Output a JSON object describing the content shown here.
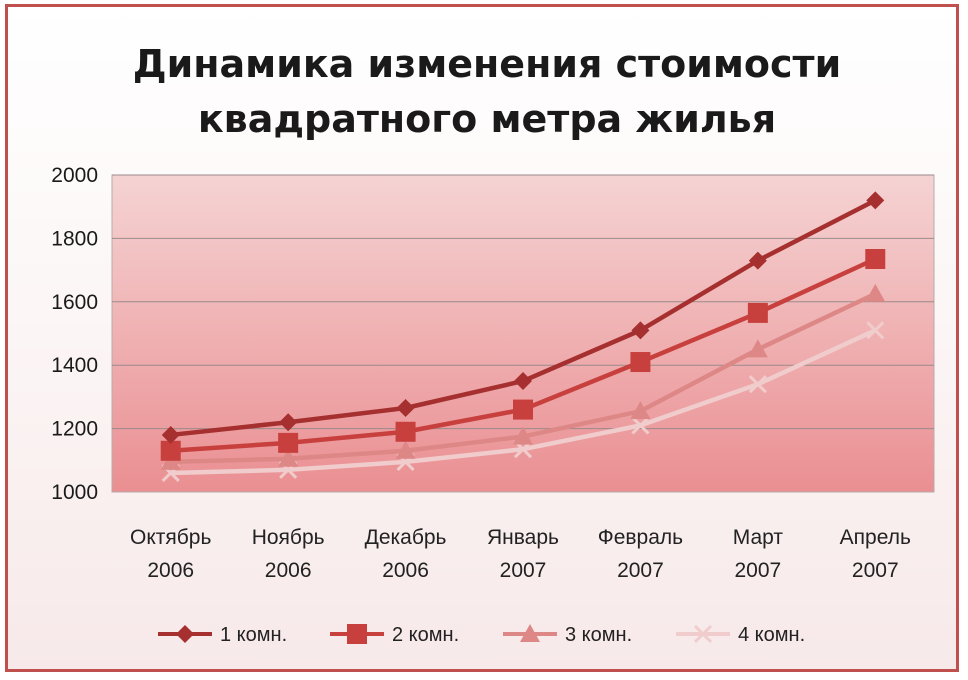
{
  "colors": {
    "frame": "#c0504d",
    "series1": "#a5302f",
    "series2": "#c7403d",
    "series3": "#dd8886",
    "series4": "#f0cccc",
    "plot_top": "#f5d3d3",
    "plot_bottom": "#ea8f92"
  },
  "chart_data": {
    "type": "line",
    "title_lines": [
      "Динамика изменения стоимости",
      "квадратного метра жилья"
    ],
    "xlabel": "",
    "ylabel": "",
    "ylim": [
      1000,
      2000
    ],
    "yticks": [
      1000,
      1200,
      1400,
      1600,
      1800,
      2000
    ],
    "grid": true,
    "legend_position": "bottom",
    "categories": [
      [
        "Октябрь",
        "2006"
      ],
      [
        "Ноябрь",
        "2006"
      ],
      [
        "Декабрь",
        "2006"
      ],
      [
        "Январь",
        "2007"
      ],
      [
        "Февраль",
        "2007"
      ],
      [
        "Март",
        "2007"
      ],
      [
        "Апрель",
        "2007"
      ]
    ],
    "series": [
      {
        "name": "1 комн.",
        "marker": "diamond",
        "values": [
          1180,
          1220,
          1265,
          1350,
          1510,
          1730,
          1920
        ]
      },
      {
        "name": "2 комн.",
        "marker": "square",
        "values": [
          1130,
          1155,
          1190,
          1260,
          1410,
          1565,
          1735
        ]
      },
      {
        "name": "3 комн.",
        "marker": "triangle",
        "values": [
          1095,
          1105,
          1130,
          1175,
          1255,
          1450,
          1625
        ]
      },
      {
        "name": "4 комн.",
        "marker": "x",
        "values": [
          1060,
          1070,
          1095,
          1135,
          1210,
          1340,
          1510
        ]
      }
    ]
  }
}
